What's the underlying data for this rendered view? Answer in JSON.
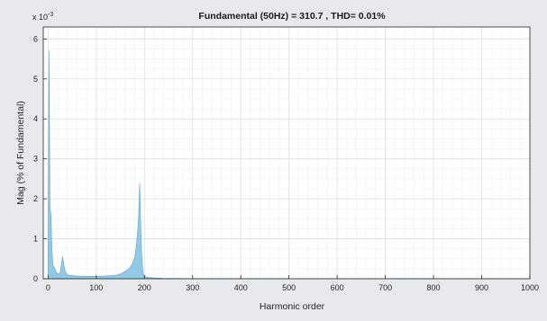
{
  "chart_data": {
    "type": "area",
    "title": "Fundamental (50Hz) = 310.7 , THD= 0.01%",
    "xlabel": "Harmonic order",
    "ylabel": "Mag (% of Fundamental)",
    "y_exponent": "x 10",
    "y_exponent_power": "-3",
    "xlim": [
      -10,
      1000
    ],
    "ylim": [
      0,
      6.3
    ],
    "x_ticks": [
      0,
      100,
      200,
      300,
      400,
      500,
      600,
      700,
      800,
      900,
      1000
    ],
    "x_tick_labels": [
      "0",
      "100",
      "200",
      "300",
      "400",
      "500",
      "600",
      "700",
      "800",
      "900",
      "1000"
    ],
    "y_ticks": [
      0,
      1,
      2,
      3,
      4,
      5,
      6
    ],
    "y_tick_labels": [
      "0",
      "1",
      "2",
      "3",
      "4",
      "5",
      "6"
    ],
    "grid": true,
    "legend": "none",
    "series": [
      {
        "color": "#7fbfe0",
        "x": [
          0,
          2,
          4,
          6,
          8,
          10,
          12,
          14,
          16,
          18,
          20,
          25,
          30,
          35,
          40,
          50,
          60,
          80,
          100,
          120,
          140,
          150,
          160,
          170,
          175,
          180,
          183,
          186,
          188,
          190,
          192,
          194,
          196,
          198,
          200,
          205,
          210,
          220,
          240,
          300,
          1000
        ],
        "y": [
          0.15,
          5.7,
          1.8,
          1.6,
          0.8,
          0.35,
          0.3,
          0.25,
          0.2,
          0.15,
          0.12,
          0.15,
          0.55,
          0.2,
          0.1,
          0.08,
          0.07,
          0.06,
          0.06,
          0.07,
          0.09,
          0.12,
          0.18,
          0.28,
          0.38,
          0.55,
          0.8,
          1.2,
          1.6,
          2.4,
          1.5,
          0.7,
          0.3,
          0.12,
          0.06,
          0.04,
          0.03,
          0.02,
          0.01,
          0.005,
          0.0
        ]
      }
    ]
  }
}
